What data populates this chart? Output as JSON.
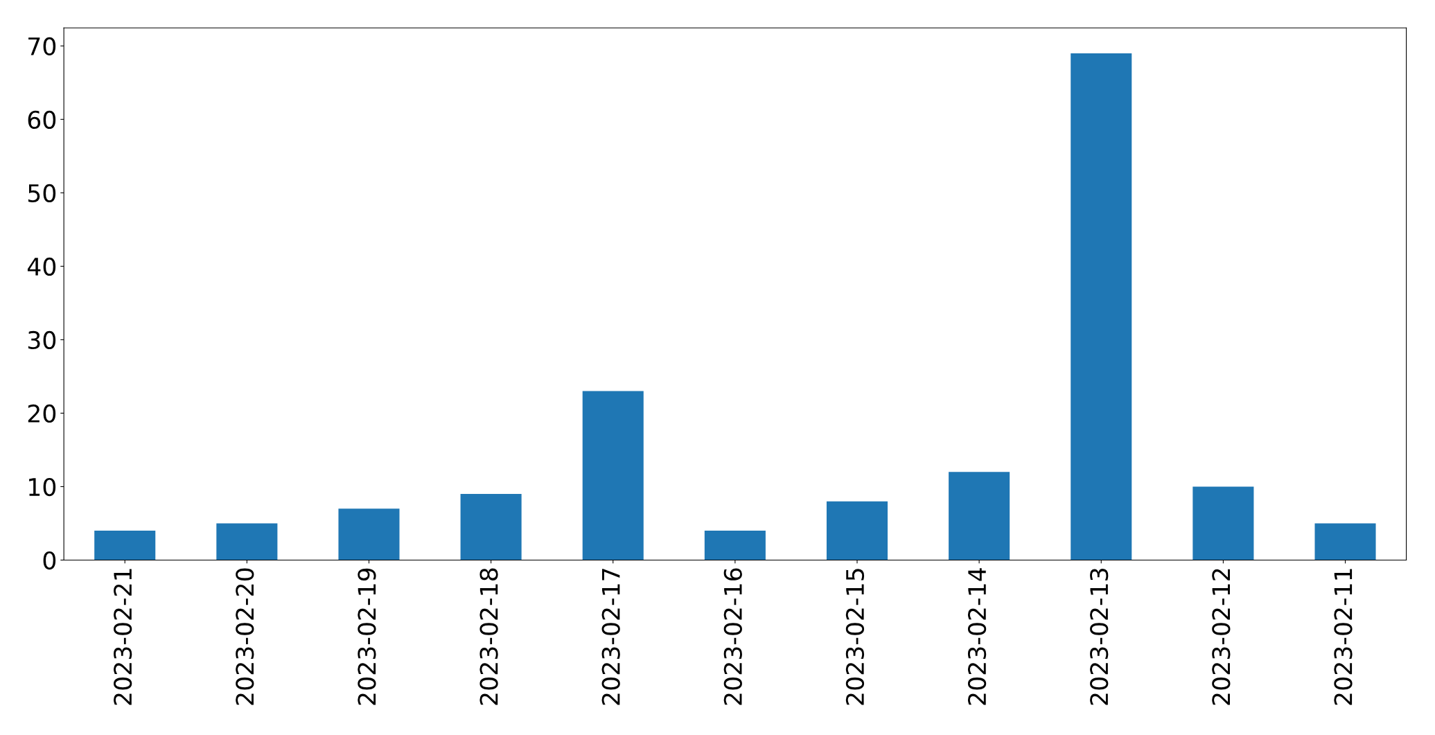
{
  "chart_data": {
    "type": "bar",
    "categories": [
      "2023-02-21",
      "2023-02-20",
      "2023-02-19",
      "2023-02-18",
      "2023-02-17",
      "2023-02-16",
      "2023-02-15",
      "2023-02-14",
      "2023-02-13",
      "2023-02-12",
      "2023-02-11"
    ],
    "values": [
      4,
      5,
      7,
      9,
      23,
      4,
      8,
      12,
      69,
      10,
      5
    ],
    "color": "#1f77b4",
    "ylim": [
      0,
      72.45
    ],
    "yticks": [
      0,
      10,
      20,
      30,
      40,
      50,
      60,
      70
    ],
    "grid": false,
    "legend": false
  }
}
